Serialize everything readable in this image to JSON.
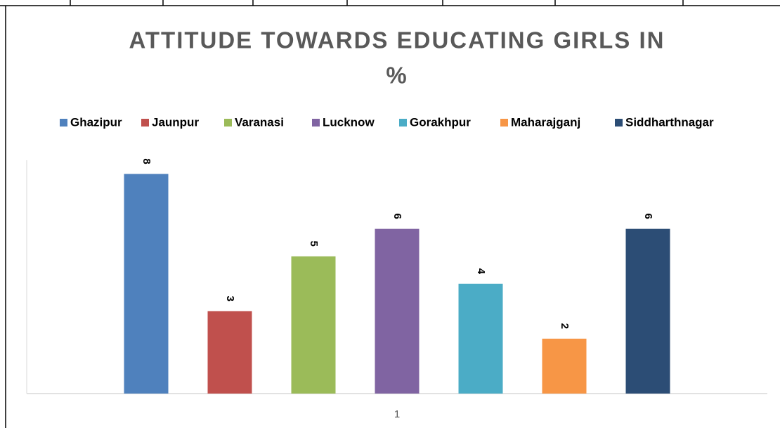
{
  "chart_data": {
    "type": "bar",
    "title": "ATTITUDE TOWARDS EDUCATING GIRLS IN",
    "title_line2": "%",
    "categories": [
      "1"
    ],
    "ylim": [
      0,
      8.5
    ],
    "legend": "top",
    "series": [
      {
        "name": "Ghazipur",
        "color": "#4f81bd",
        "values": [
          8
        ]
      },
      {
        "name": "Jaunpur",
        "color": "#c0504d",
        "values": [
          3
        ]
      },
      {
        "name": "Varanasi",
        "color": "#9bbb59",
        "values": [
          5
        ]
      },
      {
        "name": "Lucknow",
        "color": "#8064a2",
        "values": [
          6
        ]
      },
      {
        "name": "Gorakhpur",
        "color": "#4bacc6",
        "values": [
          4
        ]
      },
      {
        "name": "Maharajganj",
        "color": "#f79646",
        "values": [
          2
        ]
      },
      {
        "name": "Siddharthnagar",
        "color": "#2c4d75",
        "values": [
          6
        ]
      }
    ]
  }
}
